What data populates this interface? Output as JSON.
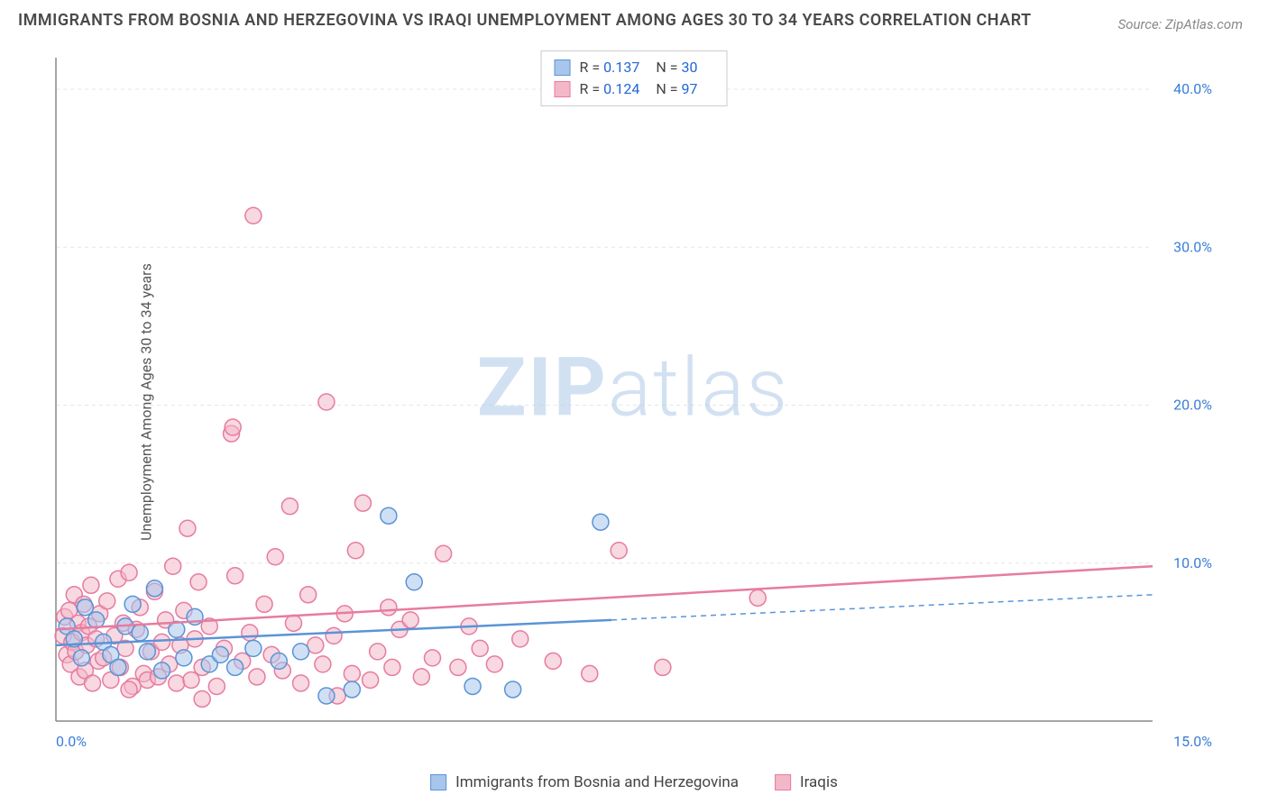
{
  "title": "IMMIGRANTS FROM BOSNIA AND HERZEGOVINA VS IRAQI UNEMPLOYMENT AMONG AGES 30 TO 34 YEARS CORRELATION CHART",
  "source": "Source: ZipAtlas.com",
  "ylabel": "Unemployment Among Ages 30 to 34 years",
  "watermark_a": "ZIP",
  "watermark_b": "atlas",
  "chart": {
    "type": "scatter",
    "background_color": "#ffffff",
    "grid_color": "#e6e6e6",
    "axis_color": "#888888",
    "axis_label_color": "#3b7dd8",
    "xlim": [
      0,
      15
    ],
    "ylim": [
      0,
      42
    ],
    "xticks": [
      {
        "v": 0,
        "l": "0.0%"
      },
      {
        "v": 15,
        "l": "15.0%"
      }
    ],
    "yticks": [
      {
        "v": 10,
        "l": "10.0%"
      },
      {
        "v": 20,
        "l": "20.0%"
      },
      {
        "v": 30,
        "l": "30.0%"
      },
      {
        "v": 40,
        "l": "40.0%"
      }
    ],
    "marker_radius": 9,
    "marker_stroke_width": 1.5,
    "trend_line_width": 2.5,
    "series": [
      {
        "name": "Immigrants from Bosnia and Herzegovina",
        "fill": "#a8c6ec",
        "stroke": "#5a94d6",
        "fill_opacity": 0.55,
        "R": "0.137",
        "N": "30",
        "trend": {
          "x1": 0,
          "y1": 4.8,
          "x2": 7.6,
          "y2": 6.4,
          "dash_x2": 15,
          "dash_y2": 8.0
        },
        "points": [
          [
            0.15,
            6.0
          ],
          [
            0.25,
            5.2
          ],
          [
            0.35,
            4.0
          ],
          [
            0.4,
            7.2
          ],
          [
            0.55,
            6.4
          ],
          [
            0.65,
            5.0
          ],
          [
            0.75,
            4.2
          ],
          [
            0.85,
            3.4
          ],
          [
            0.95,
            6.0
          ],
          [
            1.05,
            7.4
          ],
          [
            1.15,
            5.6
          ],
          [
            1.25,
            4.4
          ],
          [
            1.35,
            8.4
          ],
          [
            1.45,
            3.2
          ],
          [
            1.65,
            5.8
          ],
          [
            1.75,
            4.0
          ],
          [
            1.9,
            6.6
          ],
          [
            2.1,
            3.6
          ],
          [
            2.25,
            4.2
          ],
          [
            2.45,
            3.4
          ],
          [
            2.7,
            4.6
          ],
          [
            3.05,
            3.8
          ],
          [
            3.35,
            4.4
          ],
          [
            3.7,
            1.6
          ],
          [
            4.05,
            2.0
          ],
          [
            4.55,
            13.0
          ],
          [
            5.7,
            2.2
          ],
          [
            6.25,
            2.0
          ],
          [
            7.45,
            12.6
          ],
          [
            4.9,
            8.8
          ]
        ]
      },
      {
        "name": "Iraqis",
        "fill": "#f3b8c8",
        "stroke": "#e77ba0",
        "fill_opacity": 0.55,
        "R": "0.124",
        "N": "97",
        "trend": {
          "x1": 0,
          "y1": 5.8,
          "x2": 15,
          "y2": 9.8
        },
        "points": [
          [
            0.1,
            5.4
          ],
          [
            0.12,
            6.6
          ],
          [
            0.15,
            4.2
          ],
          [
            0.18,
            7.0
          ],
          [
            0.2,
            3.6
          ],
          [
            0.22,
            5.0
          ],
          [
            0.25,
            8.0
          ],
          [
            0.27,
            4.4
          ],
          [
            0.3,
            6.2
          ],
          [
            0.32,
            2.8
          ],
          [
            0.35,
            5.6
          ],
          [
            0.38,
            7.4
          ],
          [
            0.4,
            3.2
          ],
          [
            0.42,
            4.8
          ],
          [
            0.45,
            6.0
          ],
          [
            0.48,
            8.6
          ],
          [
            0.5,
            2.4
          ],
          [
            0.55,
            5.2
          ],
          [
            0.58,
            3.8
          ],
          [
            0.6,
            6.8
          ],
          [
            0.65,
            4.0
          ],
          [
            0.7,
            7.6
          ],
          [
            0.75,
            2.6
          ],
          [
            0.8,
            5.4
          ],
          [
            0.85,
            9.0
          ],
          [
            0.88,
            3.4
          ],
          [
            0.92,
            6.2
          ],
          [
            0.95,
            4.6
          ],
          [
            1.0,
            9.4
          ],
          [
            1.05,
            2.2
          ],
          [
            1.1,
            5.8
          ],
          [
            1.15,
            7.2
          ],
          [
            1.2,
            3.0
          ],
          [
            1.25,
            2.6
          ],
          [
            1.3,
            4.4
          ],
          [
            1.35,
            8.2
          ],
          [
            1.4,
            2.8
          ],
          [
            1.45,
            5.0
          ],
          [
            1.5,
            6.4
          ],
          [
            1.55,
            3.6
          ],
          [
            1.6,
            9.8
          ],
          [
            1.65,
            2.4
          ],
          [
            1.7,
            4.8
          ],
          [
            1.75,
            7.0
          ],
          [
            1.8,
            12.2
          ],
          [
            1.85,
            2.6
          ],
          [
            1.9,
            5.2
          ],
          [
            1.95,
            8.8
          ],
          [
            2.0,
            3.4
          ],
          [
            2.1,
            6.0
          ],
          [
            2.2,
            2.2
          ],
          [
            2.3,
            4.6
          ],
          [
            2.4,
            18.2
          ],
          [
            2.42,
            18.6
          ],
          [
            2.45,
            9.2
          ],
          [
            2.55,
            3.8
          ],
          [
            2.65,
            5.6
          ],
          [
            2.7,
            32.0
          ],
          [
            2.75,
            2.8
          ],
          [
            2.85,
            7.4
          ],
          [
            2.95,
            4.2
          ],
          [
            3.0,
            10.4
          ],
          [
            3.1,
            3.2
          ],
          [
            3.2,
            13.6
          ],
          [
            3.25,
            6.2
          ],
          [
            3.35,
            2.4
          ],
          [
            3.45,
            8.0
          ],
          [
            3.55,
            4.8
          ],
          [
            3.65,
            3.6
          ],
          [
            3.7,
            20.2
          ],
          [
            3.8,
            5.4
          ],
          [
            3.85,
            1.6
          ],
          [
            3.95,
            6.8
          ],
          [
            4.05,
            3.0
          ],
          [
            4.1,
            10.8
          ],
          [
            4.2,
            13.8
          ],
          [
            4.3,
            2.6
          ],
          [
            4.4,
            4.4
          ],
          [
            4.55,
            7.2
          ],
          [
            4.6,
            3.4
          ],
          [
            4.7,
            5.8
          ],
          [
            4.85,
            6.4
          ],
          [
            5.0,
            2.8
          ],
          [
            5.15,
            4.0
          ],
          [
            5.3,
            10.6
          ],
          [
            5.5,
            3.4
          ],
          [
            5.65,
            6.0
          ],
          [
            5.8,
            4.6
          ],
          [
            6.0,
            3.6
          ],
          [
            6.35,
            5.2
          ],
          [
            6.8,
            3.8
          ],
          [
            7.3,
            3.0
          ],
          [
            7.7,
            10.8
          ],
          [
            8.3,
            3.4
          ],
          [
            9.6,
            7.8
          ],
          [
            1.0,
            2.0
          ],
          [
            2.0,
            1.4
          ]
        ]
      }
    ]
  },
  "legend_labels": {
    "R": "R =",
    "N": "N ="
  }
}
